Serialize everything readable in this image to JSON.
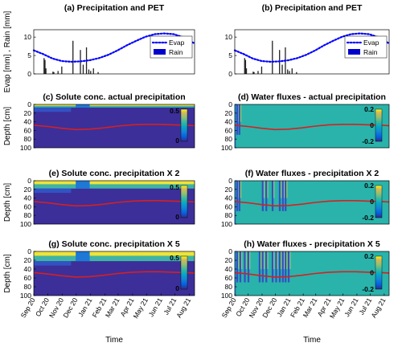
{
  "chart_data": [
    {
      "id": "a",
      "type": "bar",
      "title": "(a) Precipitation and PET",
      "ylabel": "Evap [mm] , Rain [mm]",
      "ylim": [
        0,
        12
      ],
      "yticks": [
        0,
        5,
        10
      ],
      "legend": {
        "placement": "right",
        "entries": [
          "Evap",
          "Rain"
        ]
      },
      "series": [
        {
          "name": "Evap",
          "type": "line",
          "style": "dotted",
          "color": "#0000ff",
          "x": [
            0,
            20,
            40,
            60,
            80,
            100,
            120,
            140,
            160,
            180,
            200,
            220,
            240,
            260,
            280,
            300,
            320,
            340,
            345
          ],
          "values": [
            6.4,
            5.4,
            4.2,
            3.5,
            3.3,
            3.4,
            3.7,
            4.3,
            5.2,
            6.4,
            7.8,
            9.0,
            10.1,
            10.8,
            11.0,
            10.8,
            10.0,
            8.6,
            8.3
          ]
        },
        {
          "name": "Rain",
          "type": "bar",
          "color": "#0000cc",
          "x": [
            22,
            24,
            26,
            41,
            43,
            52,
            60,
            84,
            100,
            106,
            113,
            118,
            122,
            128,
            138
          ],
          "values": [
            4.3,
            3.8,
            1.5,
            0.6,
            0.5,
            0.8,
            2.0,
            9.0,
            6.5,
            2.5,
            7.2,
            1.2,
            0.8,
            1.5,
            0.5
          ]
        }
      ]
    },
    {
      "id": "b",
      "type": "bar",
      "title": "(b) Precipitation and PET",
      "ylabel": "",
      "ylim": [
        0,
        12
      ],
      "yticks": [
        0,
        5,
        10
      ],
      "legend": {
        "placement": "right",
        "entries": [
          "Evap",
          "Rain"
        ]
      },
      "series": [
        {
          "name": "Evap",
          "type": "line",
          "style": "dotted",
          "color": "#0000ff",
          "x": [
            0,
            20,
            40,
            60,
            80,
            100,
            120,
            140,
            160,
            180,
            200,
            220,
            240,
            260,
            280,
            300,
            320,
            340,
            345
          ],
          "values": [
            6.4,
            5.4,
            4.2,
            3.5,
            3.3,
            3.4,
            3.7,
            4.3,
            5.2,
            6.4,
            7.8,
            9.0,
            10.1,
            10.8,
            11.0,
            10.8,
            10.0,
            8.6,
            8.3
          ]
        },
        {
          "name": "Rain",
          "type": "bar",
          "color": "#0000cc",
          "x": [
            22,
            24,
            26,
            41,
            43,
            52,
            60,
            84,
            100,
            106,
            113,
            118,
            122,
            128,
            138
          ],
          "values": [
            4.3,
            3.8,
            1.5,
            0.6,
            0.5,
            0.8,
            2.0,
            9.0,
            6.5,
            2.5,
            7.2,
            1.2,
            0.8,
            1.5,
            0.5
          ]
        }
      ]
    },
    {
      "id": "c",
      "type": "heatmap",
      "kind": "solute",
      "title": "(c) Solute conc. actual precipitation",
      "ylabel": "Depth [cm]",
      "ylim": [
        0,
        100
      ],
      "yticks": [
        0,
        20,
        40,
        60,
        80,
        100
      ],
      "colorbar": {
        "ticks": [
          "0.5",
          "0"
        ]
      },
      "surface_depth": 7,
      "stripes": []
    },
    {
      "id": "d",
      "type": "heatmap",
      "kind": "flux",
      "title": "(d) Water fluxes - actual precipitation",
      "ylabel": "",
      "ylim": [
        0,
        100
      ],
      "yticks": [
        0,
        20,
        40,
        60,
        80,
        100
      ],
      "colorbar": {
        "ticks": [
          "0.2",
          "0",
          "-0.2"
        ]
      },
      "stripes": [
        5,
        10
      ]
    },
    {
      "id": "e",
      "type": "heatmap",
      "kind": "solute",
      "title": "(e) Solute conc. precipitation X 2",
      "ylabel": "Depth [cm]",
      "ylim": [
        0,
        100
      ],
      "yticks": [
        0,
        20,
        40,
        60,
        80,
        100
      ],
      "colorbar": {
        "ticks": [
          "0.5",
          "0"
        ]
      },
      "surface_depth": 18,
      "stripes": []
    },
    {
      "id": "f",
      "type": "heatmap",
      "kind": "flux",
      "title": "(f) Water fluxes - precipitation X 2",
      "ylabel": "",
      "ylim": [
        0,
        100
      ],
      "yticks": [
        0,
        20,
        40,
        60,
        80,
        100
      ],
      "colorbar": {
        "ticks": [
          "0.2",
          "0",
          "-0.2"
        ]
      },
      "stripes": [
        5,
        10,
        62,
        70,
        84,
        100,
        107,
        113
      ]
    },
    {
      "id": "g",
      "type": "heatmap",
      "kind": "solute",
      "title": "(g) Solute conc. precipitation X 5",
      "ylabel": "Depth [cm]",
      "ylim": [
        0,
        100
      ],
      "yticks": [
        0,
        20,
        40,
        60,
        80,
        100
      ],
      "colorbar": {
        "ticks": [
          "0.5",
          "0"
        ]
      },
      "surface_depth": 22,
      "stripes": []
    },
    {
      "id": "h",
      "type": "heatmap",
      "kind": "flux",
      "title": "(h) Water fluxes - precipitation X 5",
      "ylabel": "",
      "ylim": [
        0,
        100
      ],
      "yticks": [
        0,
        20,
        40,
        60,
        80,
        100
      ],
      "colorbar": {
        "ticks": [
          "0.2",
          "0",
          "-0.2"
        ]
      },
      "stripes": [
        5,
        12,
        22,
        30,
        55,
        62,
        70,
        84,
        92,
        100,
        107,
        113,
        120
      ]
    }
  ],
  "red_line": {
    "color": "#d62020",
    "x": [
      0,
      30,
      60,
      90,
      120,
      150,
      180,
      210,
      240,
      270,
      300,
      330,
      345
    ],
    "depth": [
      48,
      51,
      55,
      58,
      57,
      54,
      50,
      47,
      46,
      46,
      47,
      48,
      49
    ]
  },
  "x_axis": {
    "label": "Time",
    "range_days": [
      0,
      345
    ],
    "ticks": [
      "Sep 20",
      "Oct 20",
      "Nov 20",
      "Dec 20",
      "Jan 21",
      "Feb 21",
      "Mar 21",
      "Apr 21",
      "May 21",
      "Jun 21",
      "Jul 21",
      "Aug 21"
    ],
    "tick_days": [
      0,
      30,
      61,
      91,
      122,
      153,
      181,
      212,
      242,
      273,
      303,
      334
    ]
  }
}
